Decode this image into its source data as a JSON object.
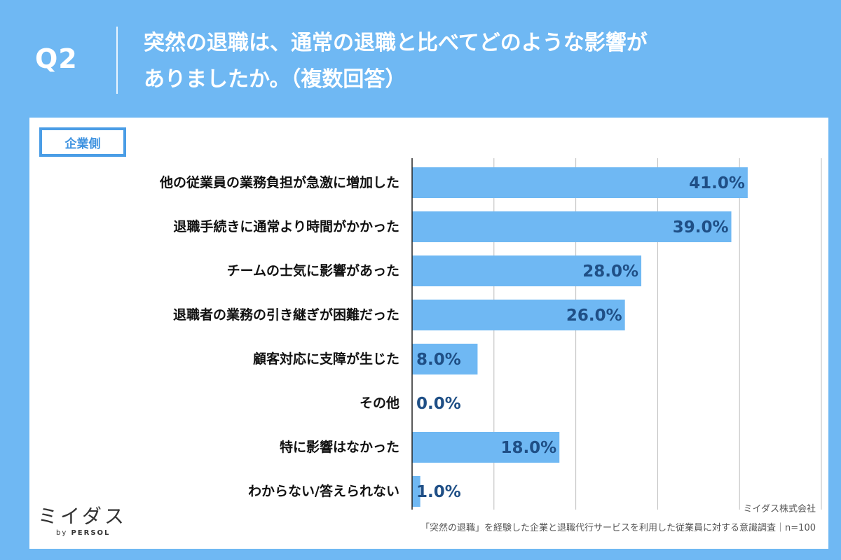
{
  "header": {
    "q_label": "Q2",
    "title_line1": "突然の退職は、通常の退職と比べてどのような影響が",
    "title_line2": "ありましたか。（複数回答）"
  },
  "tag_label": "企業側",
  "chart_data": {
    "type": "bar",
    "orientation": "horizontal",
    "categories": [
      "他の従業員の業務負担が急激に増加した",
      "退職手続きに通常より時間がかかった",
      "チームの士気に影響があった",
      "退職者の業務の引き継ぎが困難だった",
      "顧客対応に支障が生じた",
      "その他",
      "特に影響はなかった",
      "わからない/答えられない"
    ],
    "values": [
      41.0,
      39.0,
      28.0,
      26.0,
      8.0,
      0.0,
      18.0,
      1.0
    ],
    "value_labels": [
      "41.0%",
      "39.0%",
      "28.0%",
      "26.0%",
      "8.0%",
      "0.0%",
      "18.0%",
      "1.0%"
    ],
    "xlim": [
      0,
      50
    ],
    "grid": true,
    "bar_color": "#6fb8f3",
    "value_label_color": "#1f4f86"
  },
  "footer": {
    "company": "ミイダス株式会社",
    "note": "「突然の退職」を経験した企業と退職代行サービスを利用した従業員に対する意識調査｜n=100"
  },
  "logo": {
    "main": "ミイダス",
    "by": "by",
    "brand": "PERSOL"
  },
  "colors": {
    "background": "#6fb8f3",
    "card": "#ffffff",
    "accent": "#4a9de6"
  }
}
